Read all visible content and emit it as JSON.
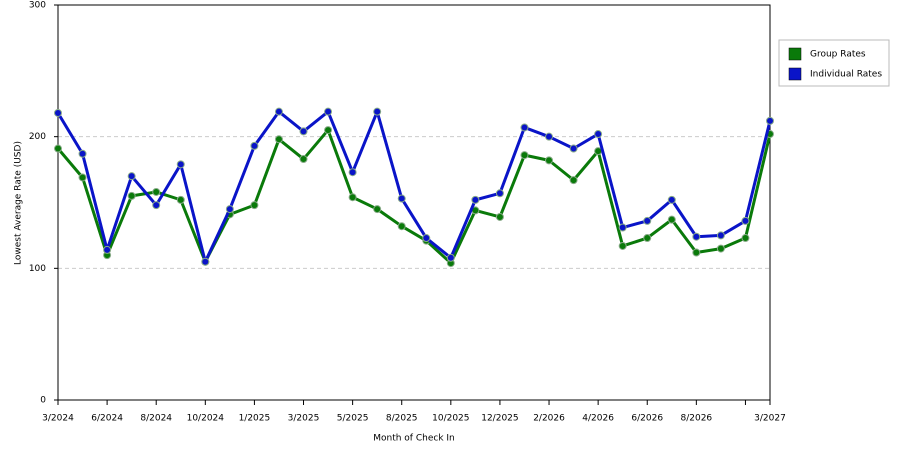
{
  "chart_data": {
    "type": "line",
    "x_label": "Month of Check In",
    "y_label": "Lowest Average Rate (USD)",
    "categories": [
      "3/2024",
      null,
      "6/2024",
      null,
      "8/2024",
      null,
      "10/2024",
      null,
      "1/2025",
      null,
      "3/2025",
      null,
      "5/2025",
      null,
      "8/2025",
      null,
      "10/2025",
      null,
      "12/2025",
      null,
      "2/2026",
      null,
      "4/2026",
      null,
      "6/2026",
      null,
      "8/2026",
      null,
      null,
      "3/2027"
    ],
    "series": [
      {
        "name": "Group Rates",
        "color": "#0a7a0a",
        "values": [
          191,
          169,
          110,
          155,
          158,
          152,
          105,
          141,
          148,
          198,
          183,
          205,
          154,
          145,
          132,
          121,
          104,
          144,
          139,
          186,
          182,
          167,
          189,
          117,
          123,
          137,
          112,
          115,
          123,
          202
        ]
      },
      {
        "name": "Individual Rates",
        "color": "#0a14c8",
        "values": [
          218,
          187,
          114,
          170,
          148,
          179,
          105,
          145,
          193,
          219,
          204,
          219,
          173,
          219,
          153,
          123,
          108,
          152,
          157,
          207,
          200,
          191,
          202,
          131,
          136,
          152,
          124,
          125,
          136,
          212
        ]
      }
    ],
    "ylim": [
      0,
      300
    ],
    "yticks": [
      0,
      100,
      200,
      300
    ],
    "grid": true
  }
}
